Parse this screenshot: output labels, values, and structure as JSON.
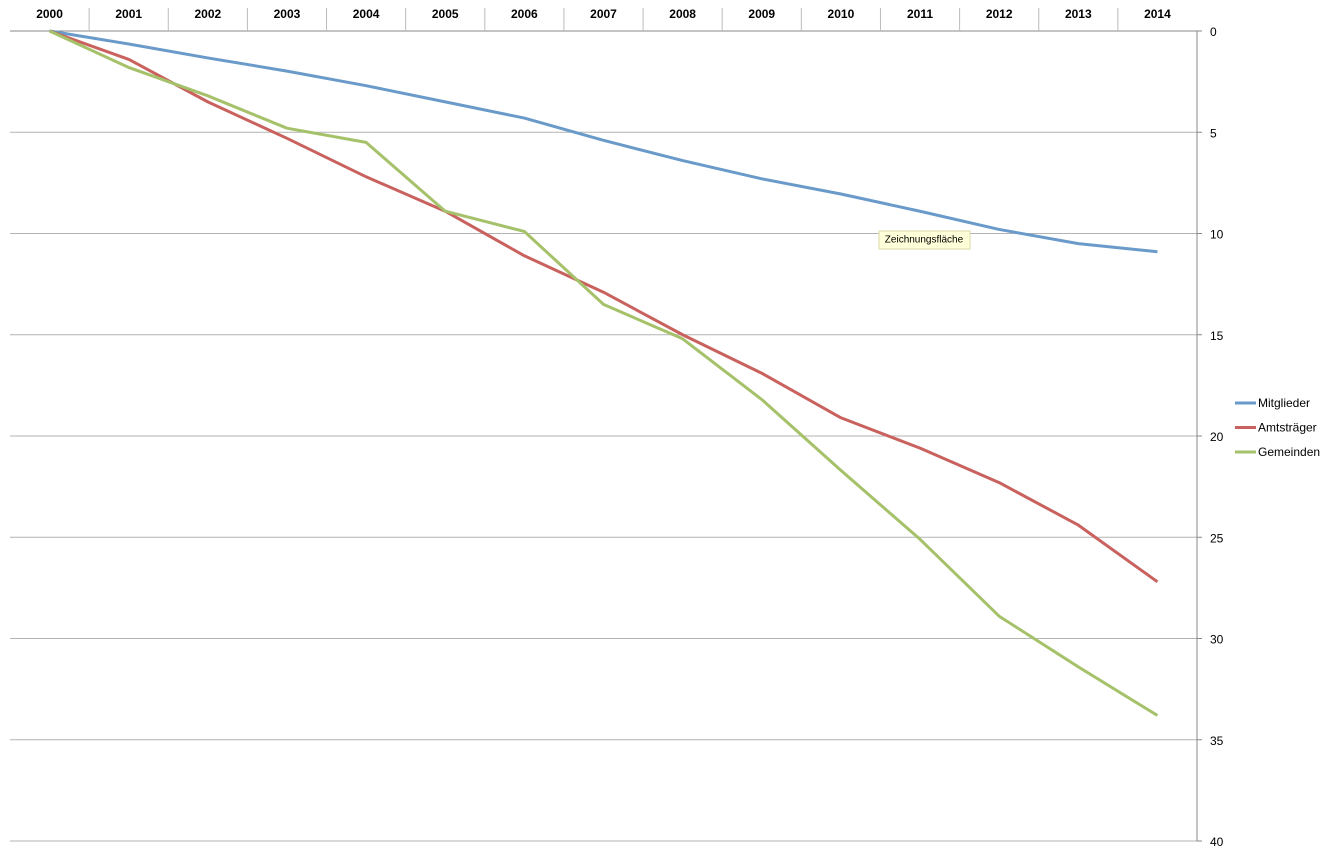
{
  "chart_data": {
    "type": "line",
    "categories": [
      "2000",
      "2001",
      "2002",
      "2003",
      "2004",
      "2005",
      "2006",
      "2007",
      "2008",
      "2009",
      "2010",
      "2011",
      "2012",
      "2013",
      "2014"
    ],
    "series": [
      {
        "name": "Mitglieder",
        "color": "#6a9ac9",
        "values": [
          0,
          0.64,
          1.33,
          1.98,
          2.7,
          3.5,
          4.3,
          5.4,
          6.4,
          7.3,
          8.05,
          8.9,
          9.8,
          10.5,
          10.9
        ]
      },
      {
        "name": "Amtsträger",
        "color": "#c9625e",
        "values": [
          0,
          1.4,
          3.5,
          5.3,
          7.2,
          8.9,
          11.1,
          12.9,
          15.0,
          16.9,
          19.1,
          20.6,
          22.3,
          24.4,
          27.2
        ]
      },
      {
        "name": "Gemeinden",
        "color": "#a5c169",
        "values": [
          0,
          1.8,
          3.2,
          4.8,
          5.5,
          8.9,
          9.9,
          13.5,
          15.2,
          18.2,
          21.7,
          25.1,
          28.9,
          31.4,
          33.8
        ]
      }
    ],
    "ylim": [
      0,
      40
    ],
    "y_reversed": true,
    "yticks": [
      0,
      5,
      10,
      15,
      20,
      25,
      30,
      35,
      40
    ],
    "grid": true,
    "legend_position": "right",
    "annotation": "Zeichnungsfläche"
  }
}
